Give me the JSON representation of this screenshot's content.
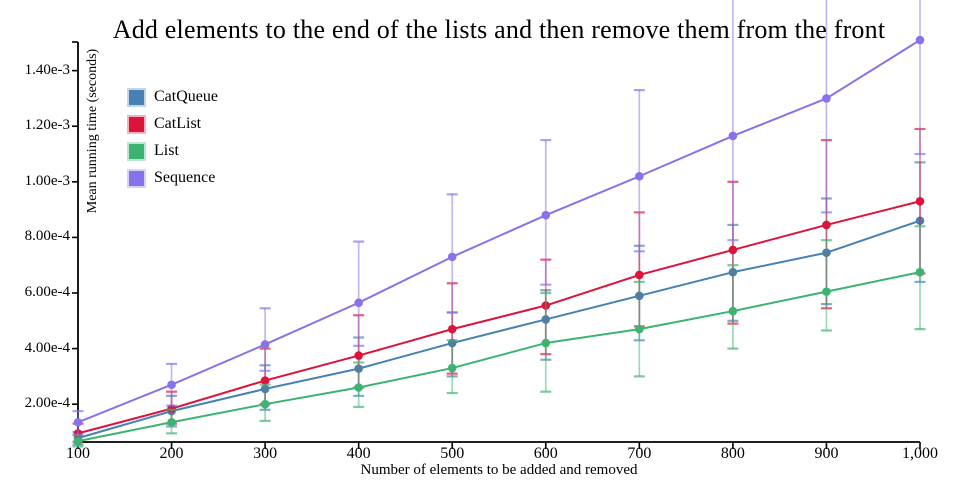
{
  "chart_data": {
    "type": "line",
    "title": "Add elements to the end of the lists and then remove them from the front",
    "xlabel": "Number of elements to be added and removed",
    "ylabel": "Mean running time (seconds)",
    "grid": false,
    "error_bars": true,
    "legend_position": "top-left",
    "x_axis": {
      "min": 100,
      "max": 1000,
      "tick_values": [
        100,
        200,
        300,
        400,
        500,
        600,
        700,
        800,
        900,
        1000
      ],
      "tick_labels": [
        "100",
        "200",
        "300",
        "400",
        "500",
        "600",
        "700",
        "800",
        "900",
        "1,000"
      ]
    },
    "y_axis": {
      "min": 6.4e-05,
      "max": 0.001503,
      "tick_values": [
        0.0002,
        0.0004,
        0.0006,
        0.0008,
        0.001,
        0.0012,
        0.0014
      ],
      "tick_labels": [
        "2.00e-4",
        "4.00e-4",
        "6.00e-4",
        "8.00e-4",
        "1.00e-3",
        "1.20e-3",
        "1.40e-3"
      ]
    },
    "x": [
      100,
      200,
      300,
      400,
      500,
      600,
      700,
      800,
      900,
      1000
    ],
    "series": [
      {
        "name": "CatQueue",
        "color": "#4781B3",
        "values": [
          7.8e-05,
          0.000175,
          0.000255,
          0.000328,
          0.00042,
          0.000505,
          0.00059,
          0.000675,
          0.000745,
          0.00086
        ],
        "error_low": [
          5.5e-05,
          0.00012,
          0.00018,
          0.00023,
          0.0003,
          0.00036,
          0.00043,
          0.0005,
          0.00056,
          0.00064
        ],
        "error_high": [
          0.0001,
          0.00023,
          0.00034,
          0.00044,
          0.00053,
          0.00061,
          0.00077,
          0.000845,
          0.00094,
          0.00107
        ]
      },
      {
        "name": "CatList",
        "color": "#DC143C",
        "values": [
          9.5e-05,
          0.000184,
          0.000285,
          0.000375,
          0.00047,
          0.000555,
          0.000665,
          0.000755,
          0.000845,
          0.00093
        ],
        "error_low": [
          6.5e-05,
          0.00013,
          0.0002,
          0.00026,
          0.00031,
          0.00038,
          0.00048,
          0.00049,
          0.000545,
          0.00067
        ],
        "error_high": [
          0.00013,
          0.000245,
          0.0004,
          0.00052,
          0.000635,
          0.00072,
          0.00089,
          0.001,
          0.00115,
          0.00119
        ]
      },
      {
        "name": "List",
        "color": "#3CB371",
        "values": [
          6.7e-05,
          0.000135,
          0.0002,
          0.00026,
          0.00033,
          0.00042,
          0.00047,
          0.000535,
          0.000605,
          0.000675
        ],
        "error_low": [
          4.8e-05,
          9.5e-05,
          0.00014,
          0.00019,
          0.00024,
          0.000245,
          0.0003,
          0.0004,
          0.000465,
          0.00047
        ],
        "error_high": [
          8.8e-05,
          0.00018,
          0.00027,
          0.00035,
          0.00043,
          0.0006,
          0.00064,
          0.0007,
          0.00079,
          0.00084
        ]
      },
      {
        "name": "Sequence",
        "color": "#8672EA",
        "values": [
          0.000135,
          0.00027,
          0.000415,
          0.000565,
          0.00073,
          0.00088,
          0.00102,
          0.001165,
          0.0013,
          0.00151
        ],
        "error_low": [
          9e-05,
          0.000195,
          0.00032,
          0.00041,
          0.00053,
          0.00063,
          0.00075,
          0.00079,
          0.00089,
          0.0011
        ],
        "error_high": [
          0.000175,
          0.000345,
          0.000545,
          0.000785,
          0.000955,
          0.00115,
          0.00133,
          0.00168,
          0.00178,
          0.00185
        ]
      }
    ],
    "axis_color": "#000000",
    "background_color": "#ffffff"
  }
}
